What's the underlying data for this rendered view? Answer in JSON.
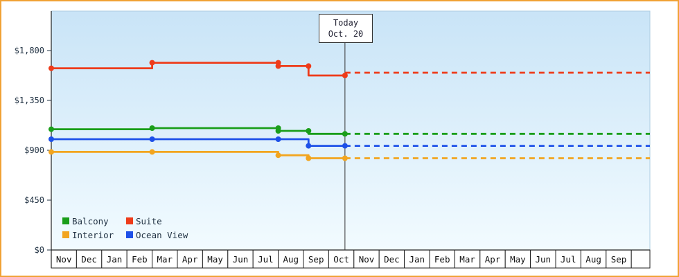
{
  "window": {
    "border_color": "#f0a235",
    "background": "#ffffff"
  },
  "chart_data": {
    "type": "line",
    "title": "",
    "today": {
      "line1": "Today",
      "line2": "Oct. 20",
      "month_x": 11.645
    },
    "y_axis": {
      "min": 0,
      "max": 1800,
      "values": [
        0,
        450,
        900,
        1350,
        1800
      ],
      "labels": [
        "$0",
        "$450",
        "$900",
        "$1,350",
        "$1,800"
      ]
    },
    "x_axis": {
      "month_labels": [
        "Nov",
        "Dec",
        "Jan",
        "Feb",
        "Mar",
        "Apr",
        "May",
        "Jun",
        "Jul",
        "Aug",
        "Sep",
        "Oct",
        "Nov",
        "Dec",
        "Jan",
        "Feb",
        "Mar",
        "Apr",
        "May",
        "Jun",
        "Jul",
        "Aug",
        "Sep"
      ]
    },
    "series": [
      {
        "name": "Balcony",
        "color": "#1a9e1a",
        "points": [
          [
            0,
            1090
          ],
          [
            4,
            1090
          ],
          [
            4,
            1100
          ],
          [
            9,
            1100
          ],
          [
            9,
            1075
          ],
          [
            10.2,
            1075
          ],
          [
            10.2,
            1048
          ],
          [
            11.645,
            1048
          ]
        ],
        "markers": [
          [
            0,
            1090
          ],
          [
            4,
            1100
          ],
          [
            9,
            1100
          ],
          [
            9,
            1075
          ],
          [
            10.2,
            1075
          ],
          [
            11.645,
            1048
          ]
        ],
        "forecast_value": 1048
      },
      {
        "name": "Suite",
        "color": "#ee3b1a",
        "points": [
          [
            0,
            1640
          ],
          [
            4,
            1640
          ],
          [
            4,
            1690
          ],
          [
            9,
            1690
          ],
          [
            9,
            1660
          ],
          [
            10.2,
            1660
          ],
          [
            10.2,
            1575
          ],
          [
            11.645,
            1575
          ]
        ],
        "markers": [
          [
            0,
            1640
          ],
          [
            4,
            1690
          ],
          [
            9,
            1690
          ],
          [
            9,
            1660
          ],
          [
            10.2,
            1660
          ],
          [
            11.645,
            1575
          ]
        ],
        "forecast_value": 1600
      },
      {
        "name": "Interior",
        "color": "#f2a51f",
        "points": [
          [
            0,
            885
          ],
          [
            9,
            885
          ],
          [
            9,
            855
          ],
          [
            10.2,
            855
          ],
          [
            10.2,
            828
          ],
          [
            11.645,
            828
          ]
        ],
        "markers": [
          [
            0,
            885
          ],
          [
            4,
            885
          ],
          [
            9,
            855
          ],
          [
            10.2,
            828
          ],
          [
            11.645,
            828
          ]
        ],
        "forecast_value": 828
      },
      {
        "name": "Ocean View",
        "color": "#1d50e8",
        "points": [
          [
            0,
            1000
          ],
          [
            10.2,
            1000
          ],
          [
            10.2,
            940
          ],
          [
            11.645,
            940
          ]
        ],
        "markers": [
          [
            0,
            1000
          ],
          [
            4,
            1000
          ],
          [
            9,
            1000
          ],
          [
            10.2,
            940
          ],
          [
            11.645,
            940
          ]
        ],
        "forecast_value": 940
      }
    ],
    "legend": {
      "position": "bottom-left",
      "rows": [
        [
          "Balcony",
          "Suite"
        ],
        [
          "Interior",
          "Ocean View"
        ]
      ]
    },
    "plot_background_gradient": [
      "#c9e4f7",
      "#f2fbff"
    ]
  }
}
